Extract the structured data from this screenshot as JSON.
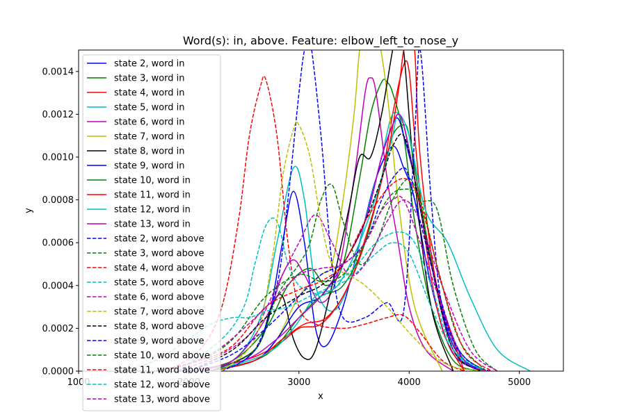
{
  "chart_data": {
    "type": "line",
    "title": "Word(s): in, above. Feature: elbow_left_to_nose_y",
    "xlabel": "x",
    "ylabel": "y",
    "xlim": [
      1000,
      5400
    ],
    "ylim": [
      0,
      0.0015
    ],
    "xticks": [
      1000,
      2000,
      3000,
      4000,
      5000
    ],
    "xtick_labels": [
      "1000",
      "2000",
      "3000",
      "4000",
      "5000"
    ],
    "yticks": [
      0,
      0.0002,
      0.0004,
      0.0006,
      0.0008,
      0.001,
      0.0012,
      0.0014
    ],
    "ytick_labels": [
      "0.0000",
      "0.0002",
      "0.0004",
      "0.0006",
      "0.0008",
      "0.0010",
      "0.0012",
      "0.0014"
    ],
    "grid": false,
    "legend_position": "upper-left",
    "series": [
      {
        "name": "state 2, word in",
        "color": "#0000ff",
        "dash": "solid",
        "x": [
          2200,
          2500,
          2700,
          2850,
          2950,
          3050,
          3150,
          3250,
          3400,
          3550,
          3700,
          3850,
          3950,
          4050,
          4200,
          4400,
          4700
        ],
        "y": [
          0,
          5e-05,
          0.0002,
          0.0006,
          0.00084,
          0.0006,
          0.0002,
          0.00012,
          0.0003,
          0.0006,
          0.0009,
          0.00105,
          0.00095,
          0.0008,
          0.0004,
          8e-05,
          0
        ]
      },
      {
        "name": "state 3, word in",
        "color": "#008000",
        "dash": "solid",
        "x": [
          2000,
          2400,
          2700,
          2900,
          3100,
          3250,
          3400,
          3550,
          3650,
          3750,
          3800,
          3850,
          3950,
          4050,
          4200,
          4400,
          4650
        ],
        "y": [
          0,
          5e-05,
          0.0002,
          0.0004,
          0.00048,
          0.0004,
          0.0005,
          0.0009,
          0.0012,
          0.00135,
          0.00135,
          0.0013,
          0.0011,
          0.0007,
          0.0003,
          5e-05,
          0
        ]
      },
      {
        "name": "state 4, word in",
        "color": "#ff0000",
        "dash": "solid",
        "x": [
          2000,
          2500,
          2800,
          3000,
          3200,
          3400,
          3600,
          3750,
          3850,
          3950,
          4000,
          4050,
          4150,
          4300,
          4500
        ],
        "y": [
          0,
          5e-05,
          0.00012,
          0.0002,
          0.00022,
          0.00035,
          0.0006,
          0.0009,
          0.0012,
          0.00143,
          0.0014,
          0.0011,
          0.0006,
          0.0002,
          0
        ]
      },
      {
        "name": "state 5, word in",
        "color": "#00bfbf",
        "dash": "solid",
        "x": [
          2000,
          2400,
          2650,
          2800,
          2950,
          3050,
          3150,
          3300,
          3450,
          3600,
          3750,
          3850,
          3950,
          4050,
          4200,
          4400,
          4700
        ],
        "y": [
          0,
          5e-05,
          0.00025,
          0.0006,
          0.00095,
          0.0008,
          0.0004,
          0.00028,
          0.0004,
          0.0007,
          0.001,
          0.0012,
          0.00115,
          0.0009,
          0.0005,
          0.0001,
          0
        ]
      },
      {
        "name": "state 6, word in",
        "color": "#bf00bf",
        "dash": "solid",
        "x": [
          2000,
          2400,
          2700,
          2850,
          2950,
          3050,
          3200,
          3350,
          3500,
          3600,
          3650,
          3700,
          3800,
          3900,
          4000,
          4150,
          4400
        ],
        "y": [
          0,
          5e-05,
          0.00025,
          0.00045,
          0.00052,
          0.00045,
          0.00032,
          0.00045,
          0.0009,
          0.0013,
          0.00137,
          0.0013,
          0.0009,
          0.0006,
          0.0003,
          0.0001,
          0
        ]
      },
      {
        "name": "state 7, word in",
        "color": "#bfbf00",
        "dash": "solid",
        "x": [
          2200,
          2600,
          2800,
          3000,
          3200,
          3300,
          3400,
          3500,
          3550,
          3600,
          3700,
          3800,
          3900,
          4050,
          4300
        ],
        "y": [
          0,
          5e-05,
          0.00015,
          0.00035,
          0.00045,
          0.0005,
          0.0008,
          0.0012,
          0.0015,
          0.0016,
          0.0016,
          0.0013,
          0.0008,
          0.0003,
          0
        ]
      },
      {
        "name": "state 8, word in",
        "color": "#000000",
        "dash": "solid",
        "x": [
          2200,
          2600,
          2750,
          2850,
          2950,
          3050,
          3150,
          3300,
          3450,
          3550,
          3650,
          3750,
          3850,
          3900,
          3950,
          4050,
          4200,
          4400
        ],
        "y": [
          0,
          0.0001,
          0.0003,
          0.00035,
          0.00015,
          6e-05,
          0.0001,
          0.0004,
          0.00075,
          0.001,
          0.001,
          0.0012,
          0.0015,
          0.0016,
          0.0015,
          0.0009,
          0.0003,
          0
        ]
      },
      {
        "name": "state 9, word in",
        "color": "#0000ff",
        "dash": "solid",
        "x": [
          2200,
          2600,
          2800,
          3000,
          3200,
          3400,
          3600,
          3750,
          3850,
          3900,
          3950,
          4050,
          4200,
          4400,
          4650
        ],
        "y": [
          0,
          5e-05,
          0.00015,
          0.0003,
          0.00035,
          0.0005,
          0.0007,
          0.001,
          0.00115,
          0.00118,
          0.0011,
          0.0009,
          0.0005,
          0.00012,
          0
        ]
      },
      {
        "name": "state 10, word in",
        "color": "#008000",
        "dash": "solid",
        "x": [
          2200,
          2600,
          2800,
          3000,
          3200,
          3400,
          3600,
          3750,
          3850,
          3950,
          4000,
          4100,
          4250,
          4450,
          4700
        ],
        "y": [
          0,
          5e-05,
          0.00012,
          0.00025,
          0.00035,
          0.0004,
          0.0006,
          0.0009,
          0.0011,
          0.00115,
          0.0011,
          0.0008,
          0.0004,
          0.0001,
          0
        ]
      },
      {
        "name": "state 11, word in",
        "color": "#ff0000",
        "dash": "solid",
        "x": [
          2200,
          2600,
          2850,
          3050,
          3250,
          3450,
          3650,
          3800,
          3900,
          3950,
          4000,
          4050,
          4100,
          4250,
          4500
        ],
        "y": [
          0,
          5e-05,
          0.00015,
          0.00022,
          0.00025,
          0.0004,
          0.0007,
          0.001,
          0.0013,
          0.0015,
          0.0016,
          0.0015,
          0.001,
          0.0004,
          0
        ]
      },
      {
        "name": "state 12, word in",
        "color": "#00bfbf",
        "dash": "solid",
        "x": [
          2200,
          2700,
          2950,
          3150,
          3350,
          3550,
          3750,
          3850,
          3900,
          4000,
          4150,
          4350,
          4550,
          4800,
          5100
        ],
        "y": [
          0,
          8e-05,
          0.0002,
          0.00035,
          0.0004,
          0.0006,
          0.0009,
          0.0011,
          0.0012,
          0.0011,
          0.00075,
          0.0006,
          0.00035,
          0.0001,
          0
        ]
      },
      {
        "name": "state 13, word in",
        "color": "#bf00bf",
        "dash": "solid",
        "x": [
          2000,
          2500,
          2800,
          3000,
          3200,
          3400,
          3600,
          3750,
          3850,
          3900,
          3950,
          4050,
          4200,
          4400,
          4650
        ],
        "y": [
          0,
          5e-05,
          0.00015,
          0.00025,
          0.00035,
          0.0005,
          0.0007,
          0.001,
          0.00115,
          0.0012,
          0.00115,
          0.0009,
          0.0005,
          0.0001,
          0
        ]
      },
      {
        "name": "state 2, word above",
        "color": "#0000ff",
        "dash": "dashed",
        "x": [
          2300,
          2600,
          2800,
          2900,
          3000,
          3050,
          3100,
          3200,
          3300,
          3400,
          3600,
          3800,
          3950,
          4050,
          4100,
          4200,
          4300,
          4500,
          4700
        ],
        "y": [
          0,
          0.0001,
          0.0004,
          0.0008,
          0.0013,
          0.0015,
          0.00155,
          0.0011,
          0.0005,
          0.00025,
          0.00025,
          0.00032,
          0.00028,
          0.0011,
          0.0015,
          0.0008,
          0.0003,
          5e-05,
          0
        ]
      },
      {
        "name": "state 3, word above",
        "color": "#008000",
        "dash": "dashed",
        "x": [
          2200,
          2600,
          2800,
          3000,
          3100,
          3200,
          3300,
          3400,
          3550,
          3700,
          3850,
          4000,
          4100,
          4250,
          4400,
          4600,
          4800
        ],
        "y": [
          0,
          0.0001,
          0.00035,
          0.0005,
          0.0006,
          0.0008,
          0.00087,
          0.0007,
          0.0005,
          0.0006,
          0.0008,
          0.0009,
          0.0008,
          0.00076,
          0.0004,
          0.0001,
          0
        ]
      },
      {
        "name": "state 4, word above",
        "color": "#ff0000",
        "dash": "dashed",
        "x": [
          1800,
          2100,
          2300,
          2450,
          2550,
          2650,
          2700,
          2800,
          2900,
          3000,
          3150,
          3400,
          3600,
          3800,
          3950,
          4100,
          4300,
          4500
        ],
        "y": [
          0,
          0.0001,
          0.0003,
          0.0007,
          0.0011,
          0.00133,
          0.00136,
          0.0011,
          0.0006,
          0.0003,
          0.00022,
          0.0002,
          0.00022,
          0.00025,
          0.00026,
          0.00018,
          5e-05,
          0
        ]
      },
      {
        "name": "state 5, word above",
        "color": "#00bfbf",
        "dash": "dashed",
        "x": [
          1900,
          2300,
          2500,
          2600,
          2700,
          2800,
          2900,
          3000,
          3100,
          3200,
          3350,
          3500,
          3700,
          3850,
          4000,
          4200,
          4400,
          4700
        ],
        "y": [
          0,
          0.00015,
          0.0003,
          0.0005,
          0.00068,
          0.0007,
          0.0005,
          0.0004,
          0.00038,
          0.00035,
          0.0004,
          0.00045,
          0.00055,
          0.0006,
          0.00055,
          0.0003,
          0.0001,
          0
        ]
      },
      {
        "name": "state 6, word above",
        "color": "#bf00bf",
        "dash": "dashed",
        "x": [
          1900,
          2300,
          2600,
          2800,
          3000,
          3150,
          3300,
          3450,
          3600,
          3800,
          3950,
          4100,
          4300,
          4550,
          4800
        ],
        "y": [
          0,
          8e-05,
          0.0002,
          0.0004,
          0.0006,
          0.00073,
          0.0006,
          0.00045,
          0.0005,
          0.0007,
          0.0008,
          0.0007,
          0.0004,
          0.0001,
          0
        ]
      },
      {
        "name": "state 7, word above",
        "color": "#bfbf00",
        "dash": "dashed",
        "x": [
          2300,
          2600,
          2750,
          2850,
          2950,
          3000,
          3100,
          3200,
          3300,
          3450,
          3600,
          3800,
          4000,
          4200,
          4400,
          4700
        ],
        "y": [
          0,
          0.00015,
          0.0005,
          0.0009,
          0.00113,
          0.00115,
          0.001,
          0.0007,
          0.0005,
          0.00045,
          0.0004,
          0.0003,
          0.00018,
          8e-05,
          2e-05,
          0
        ]
      },
      {
        "name": "state 8, word above",
        "color": "#000000",
        "dash": "dashed",
        "x": [
          2000,
          2400,
          2700,
          3000,
          3200,
          3400,
          3600,
          3750,
          3850,
          3950,
          4050,
          4200,
          4400,
          4650
        ],
        "y": [
          0,
          0.0001,
          0.00025,
          0.00035,
          0.0004,
          0.0005,
          0.0007,
          0.0009,
          0.00105,
          0.0011,
          0.0009,
          0.0005,
          0.0001,
          0
        ]
      },
      {
        "name": "state 9, word above",
        "color": "#0000ff",
        "dash": "dashed",
        "x": [
          2000,
          2400,
          2700,
          3000,
          3200,
          3400,
          3600,
          3750,
          3850,
          3950,
          4000,
          4100,
          4250,
          4450,
          4700
        ],
        "y": [
          0,
          8e-05,
          0.0002,
          0.00035,
          0.00045,
          0.0005,
          0.0006,
          0.0008,
          0.0009,
          0.00095,
          0.0009,
          0.0007,
          0.0004,
          0.0001,
          0
        ]
      },
      {
        "name": "state 10, word above",
        "color": "#008000",
        "dash": "dashed",
        "x": [
          1700,
          2100,
          2400,
          2700,
          3000,
          3200,
          3400,
          3600,
          3800,
          3950,
          4100,
          4250,
          4450,
          4700
        ],
        "y": [
          0,
          5e-05,
          0.00015,
          0.00035,
          0.00045,
          0.00042,
          0.00045,
          0.0006,
          0.0008,
          0.00085,
          0.0008,
          0.0005,
          0.00015,
          0
        ]
      },
      {
        "name": "state 11, word above",
        "color": "#ff0000",
        "dash": "dashed",
        "x": [
          1700,
          2100,
          2400,
          2700,
          3000,
          3200,
          3400,
          3600,
          3800,
          3950,
          4050,
          4150,
          4300,
          4500,
          4750
        ],
        "y": [
          0,
          5e-05,
          0.00012,
          0.0003,
          0.00038,
          0.00042,
          0.0005,
          0.0007,
          0.00085,
          0.0009,
          0.00085,
          0.0007,
          0.0004,
          0.0001,
          0
        ]
      },
      {
        "name": "state 12, word above",
        "color": "#00bfbf",
        "dash": "dashed",
        "x": [
          1400,
          1700,
          2000,
          2200,
          2400,
          2550,
          2700,
          2900,
          3100,
          3300,
          3500,
          3700,
          3900,
          4050,
          4200,
          4400,
          4700
        ],
        "y": [
          0,
          5e-05,
          0.00015,
          0.00022,
          0.00025,
          0.00025,
          0.00028,
          0.0003,
          0.00035,
          0.0004,
          0.00048,
          0.0006,
          0.00065,
          0.0006,
          0.0004,
          0.0001,
          0
        ]
      },
      {
        "name": "state 13, word above",
        "color": "#bf00bf",
        "dash": "dashed",
        "x": [
          1800,
          2200,
          2500,
          2800,
          3000,
          3200,
          3400,
          3600,
          3750,
          3850,
          3950,
          4100,
          4300,
          4500,
          4750
        ],
        "y": [
          0,
          8e-05,
          0.0002,
          0.00035,
          0.00045,
          0.00048,
          0.0005,
          0.0006,
          0.00075,
          0.0008,
          0.0008,
          0.0006,
          0.0003,
          5e-05,
          0
        ]
      }
    ]
  }
}
